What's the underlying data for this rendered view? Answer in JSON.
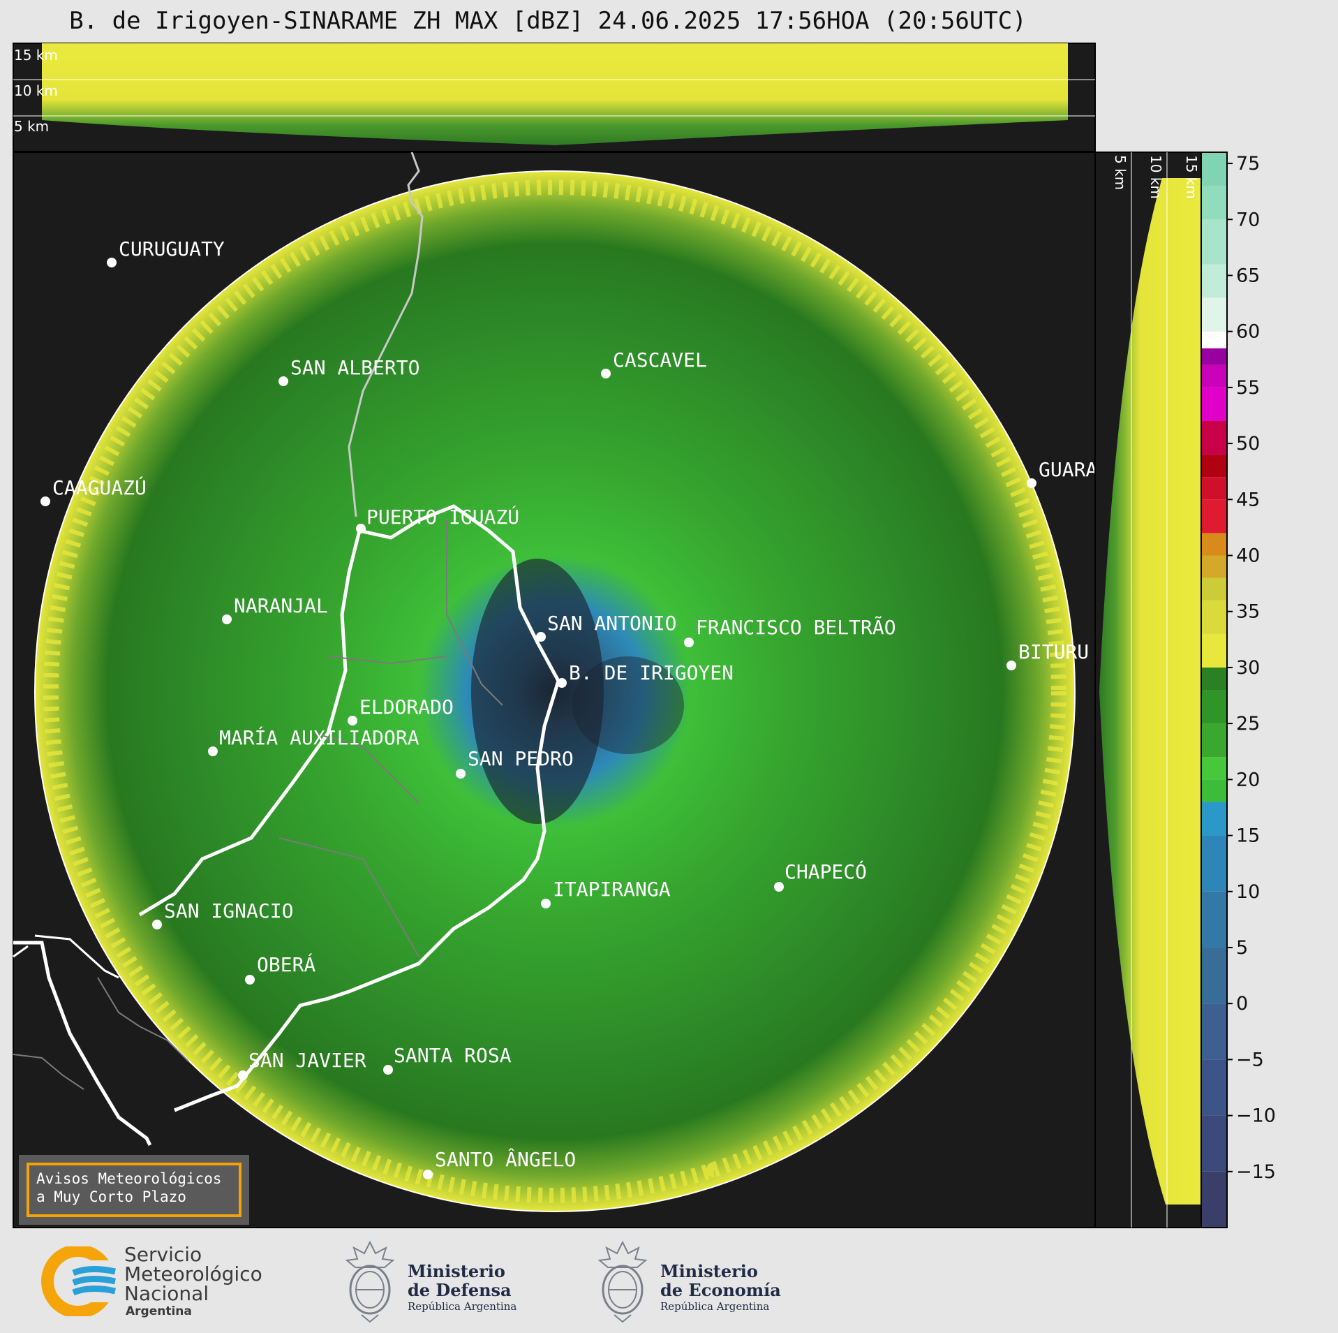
{
  "title": "B. de Irigoyen-SINARAME ZH MAX [dBZ] 24.06.2025 17:56HOA (20:56UTC)",
  "height_labels": [
    "15 km",
    "10 km",
    "5 km"
  ],
  "cities": [
    {
      "name": "CURUGUATY"
    },
    {
      "name": "SAN ALBERTO"
    },
    {
      "name": "CASCAVEL"
    },
    {
      "name": "CAAGUAZÚ"
    },
    {
      "name": "GUARA"
    },
    {
      "name": "PUERTO IGUAZÚ"
    },
    {
      "name": "NARANJAL"
    },
    {
      "name": "SAN ANTONIO"
    },
    {
      "name": "FRANCISCO BELTRÃO"
    },
    {
      "name": "B. DE IRIGOYEN"
    },
    {
      "name": "BITURU"
    },
    {
      "name": "ELDORADO"
    },
    {
      "name": "MARÍA AUXILIADORA"
    },
    {
      "name": "SAN PEDRO"
    },
    {
      "name": "CHAPECÓ"
    },
    {
      "name": "ITAPIRANGA"
    },
    {
      "name": "SAN IGNACIO"
    },
    {
      "name": "OBERÁ"
    },
    {
      "name": "SAN JAVIER"
    },
    {
      "name": "SANTA ROSA"
    },
    {
      "name": "SANTO ÂNGELO"
    }
  ],
  "colorbar": {
    "unit": "dBZ",
    "ticks": [
      "75",
      "70",
      "65",
      "60",
      "55",
      "50",
      "45",
      "40",
      "35",
      "30",
      "25",
      "20",
      "15",
      "10",
      "5",
      "0",
      "−5",
      "−10",
      "−15"
    ],
    "min": -20,
    "max": 76
  },
  "warning_box": {
    "line1": "Avisos Meteorológicos",
    "line2": "a Muy Corto Plazo"
  },
  "logos": {
    "smn": {
      "line1": "Servicio",
      "line2": "Meteorológico",
      "line3": "Nacional",
      "line4": "Argentina"
    },
    "defensa": {
      "line1": "Ministerio",
      "line2": "de Defensa",
      "line3": "República Argentina"
    },
    "economia": {
      "line1": "Ministerio",
      "line2": "de Economía",
      "line3": "República Argentina"
    }
  }
}
